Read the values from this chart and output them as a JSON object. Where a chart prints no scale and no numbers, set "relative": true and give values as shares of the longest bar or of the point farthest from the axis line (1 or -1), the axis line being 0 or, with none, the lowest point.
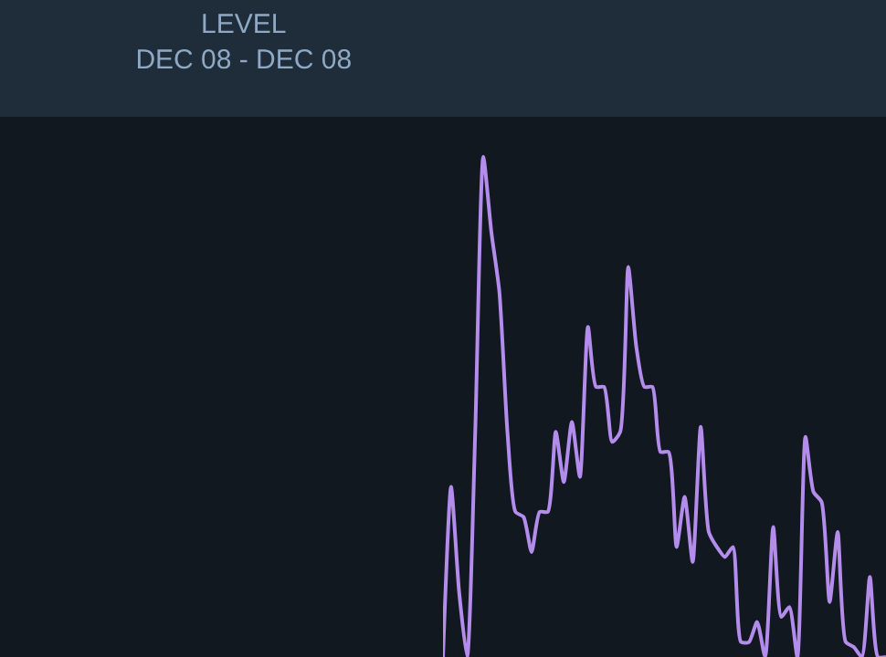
{
  "chart_data": {
    "type": "line",
    "title": "LEVEL",
    "subtitle": "DEC 08 - DEC 08",
    "relative": true,
    "marker": "none",
    "line_style": "solid",
    "categories": [
      null,
      null,
      null,
      null,
      null,
      null,
      null,
      null,
      null,
      null,
      null,
      null,
      null,
      null,
      null,
      null,
      null,
      null,
      null,
      null,
      null,
      null,
      null,
      null,
      null,
      null,
      null,
      null,
      null,
      null,
      null,
      null,
      null,
      null,
      null,
      null,
      null,
      null,
      null,
      null,
      null,
      null,
      null,
      null,
      null,
      null,
      null,
      null,
      null,
      null,
      null,
      null,
      null,
      null,
      null,
      null
    ],
    "series": [
      {
        "color": "#b48cec",
        "values": [
          0,
          0.34,
          0.13,
          0,
          0.45,
          1.0,
          0.85,
          0.73,
          0.45,
          0.29,
          0.28,
          0.21,
          0.29,
          0.29,
          0.45,
          0.35,
          0.47,
          0.36,
          0.66,
          0.54,
          0.54,
          0.43,
          0.45,
          0.78,
          0.62,
          0.54,
          0.54,
          0.41,
          0.41,
          0.22,
          0.32,
          0.19,
          0.46,
          0.25,
          0.22,
          0.2,
          0.22,
          0.03,
          0.03,
          0.07,
          0,
          0.26,
          0.08,
          0.1,
          0,
          0.44,
          0.33,
          0.31,
          0.11,
          0.25,
          0.03,
          0.02,
          0,
          0.16,
          0,
          0
        ]
      }
    ]
  }
}
